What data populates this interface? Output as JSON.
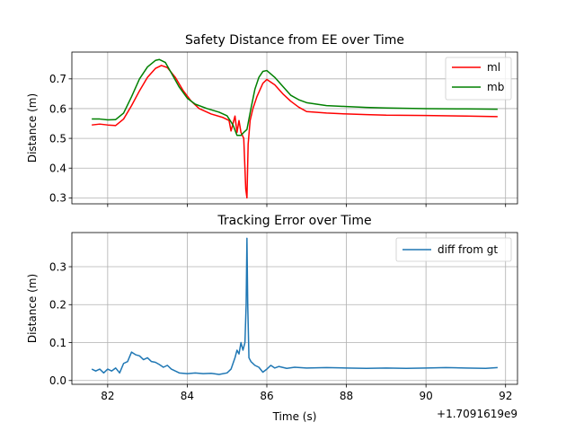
{
  "chart_data": [
    {
      "type": "line",
      "title": "Safety Distance from EE over Time",
      "xlabel": "",
      "ylabel": "Distance (m)",
      "xlim": [
        81.1,
        92.3
      ],
      "ylim": [
        0.28,
        0.79
      ],
      "xticks": [
        82,
        84,
        86,
        88,
        90,
        92
      ],
      "show_xtick_labels": false,
      "yticks": [
        0.3,
        0.4,
        0.5,
        0.6,
        0.7
      ],
      "ytick_labels": [
        "0.3",
        "0.4",
        "0.5",
        "0.6",
        "0.7"
      ],
      "grid": true,
      "legend_position": "upper right",
      "series": [
        {
          "name": "ml",
          "color": "#ff0000",
          "x": [
            81.6,
            81.8,
            82.0,
            82.2,
            82.4,
            82.6,
            82.8,
            83.0,
            83.2,
            83.35,
            83.5,
            83.7,
            83.9,
            84.1,
            84.3,
            84.6,
            84.9,
            85.05,
            85.1,
            85.2,
            85.25,
            85.3,
            85.35,
            85.42,
            85.47,
            85.5,
            85.53,
            85.58,
            85.65,
            85.75,
            85.9,
            86.0,
            86.2,
            86.4,
            86.6,
            86.8,
            87.0,
            87.5,
            88.0,
            88.5,
            89.0,
            90.0,
            91.0,
            91.8
          ],
          "y": [
            0.545,
            0.548,
            0.545,
            0.543,
            0.565,
            0.61,
            0.66,
            0.705,
            0.735,
            0.745,
            0.738,
            0.705,
            0.66,
            0.625,
            0.6,
            0.582,
            0.57,
            0.56,
            0.525,
            0.575,
            0.52,
            0.56,
            0.52,
            0.5,
            0.33,
            0.3,
            0.48,
            0.56,
            0.6,
            0.64,
            0.685,
            0.698,
            0.68,
            0.65,
            0.625,
            0.605,
            0.59,
            0.585,
            0.582,
            0.58,
            0.578,
            0.577,
            0.575,
            0.573
          ]
        },
        {
          "name": "mb",
          "color": "#008000",
          "x": [
            81.6,
            81.8,
            82.0,
            82.2,
            82.4,
            82.6,
            82.8,
            83.0,
            83.2,
            83.3,
            83.45,
            83.6,
            83.8,
            84.0,
            84.2,
            84.5,
            84.8,
            85.0,
            85.15,
            85.25,
            85.35,
            85.42,
            85.5,
            85.6,
            85.7,
            85.8,
            85.9,
            86.0,
            86.2,
            86.4,
            86.6,
            86.8,
            87.0,
            87.5,
            88.0,
            88.5,
            89.0,
            90.0,
            91.0,
            91.8
          ],
          "y": [
            0.565,
            0.565,
            0.562,
            0.563,
            0.585,
            0.64,
            0.7,
            0.74,
            0.762,
            0.765,
            0.755,
            0.72,
            0.672,
            0.635,
            0.615,
            0.6,
            0.588,
            0.576,
            0.545,
            0.51,
            0.51,
            0.52,
            0.53,
            0.6,
            0.665,
            0.705,
            0.725,
            0.728,
            0.705,
            0.675,
            0.645,
            0.63,
            0.62,
            0.61,
            0.607,
            0.604,
            0.602,
            0.6,
            0.599,
            0.598
          ]
        }
      ]
    },
    {
      "type": "line",
      "title": "Tracking Error over Time",
      "xlabel": "Time (s)",
      "ylabel": "Distance (m)",
      "xlim": [
        81.1,
        92.3
      ],
      "ylim": [
        -0.01,
        0.39
      ],
      "xticks": [
        82,
        84,
        86,
        88,
        90,
        92
      ],
      "xtick_labels": [
        "82",
        "84",
        "86",
        "88",
        "90",
        "92"
      ],
      "show_xtick_labels": true,
      "yticks": [
        0.0,
        0.1,
        0.2,
        0.3
      ],
      "ytick_labels": [
        "0.0",
        "0.1",
        "0.2",
        "0.3"
      ],
      "offset_text": "+1.7091619e9",
      "grid": true,
      "legend_position": "upper right",
      "series": [
        {
          "name": "diff from gt",
          "color": "#1f77b4",
          "x": [
            81.6,
            81.7,
            81.8,
            81.9,
            82.0,
            82.1,
            82.2,
            82.3,
            82.4,
            82.5,
            82.6,
            82.7,
            82.8,
            82.9,
            83.0,
            83.1,
            83.2,
            83.3,
            83.4,
            83.5,
            83.6,
            83.7,
            83.8,
            84.0,
            84.2,
            84.4,
            84.6,
            84.8,
            85.0,
            85.1,
            85.2,
            85.25,
            85.3,
            85.35,
            85.4,
            85.45,
            85.48,
            85.5,
            85.52,
            85.55,
            85.6,
            85.7,
            85.8,
            85.9,
            86.0,
            86.1,
            86.2,
            86.3,
            86.5,
            86.7,
            87.0,
            87.5,
            88.0,
            88.5,
            89.0,
            89.5,
            90.0,
            90.5,
            91.0,
            91.5,
            91.8
          ],
          "y": [
            0.03,
            0.025,
            0.03,
            0.02,
            0.03,
            0.025,
            0.033,
            0.02,
            0.045,
            0.05,
            0.075,
            0.068,
            0.065,
            0.055,
            0.06,
            0.05,
            0.048,
            0.042,
            0.035,
            0.04,
            0.03,
            0.025,
            0.02,
            0.018,
            0.02,
            0.018,
            0.019,
            0.016,
            0.02,
            0.03,
            0.06,
            0.08,
            0.07,
            0.1,
            0.08,
            0.1,
            0.2,
            0.375,
            0.2,
            0.06,
            0.05,
            0.04,
            0.035,
            0.022,
            0.03,
            0.04,
            0.033,
            0.037,
            0.032,
            0.035,
            0.033,
            0.034,
            0.033,
            0.032,
            0.033,
            0.032,
            0.033,
            0.034,
            0.033,
            0.032,
            0.034
          ]
        }
      ]
    }
  ]
}
